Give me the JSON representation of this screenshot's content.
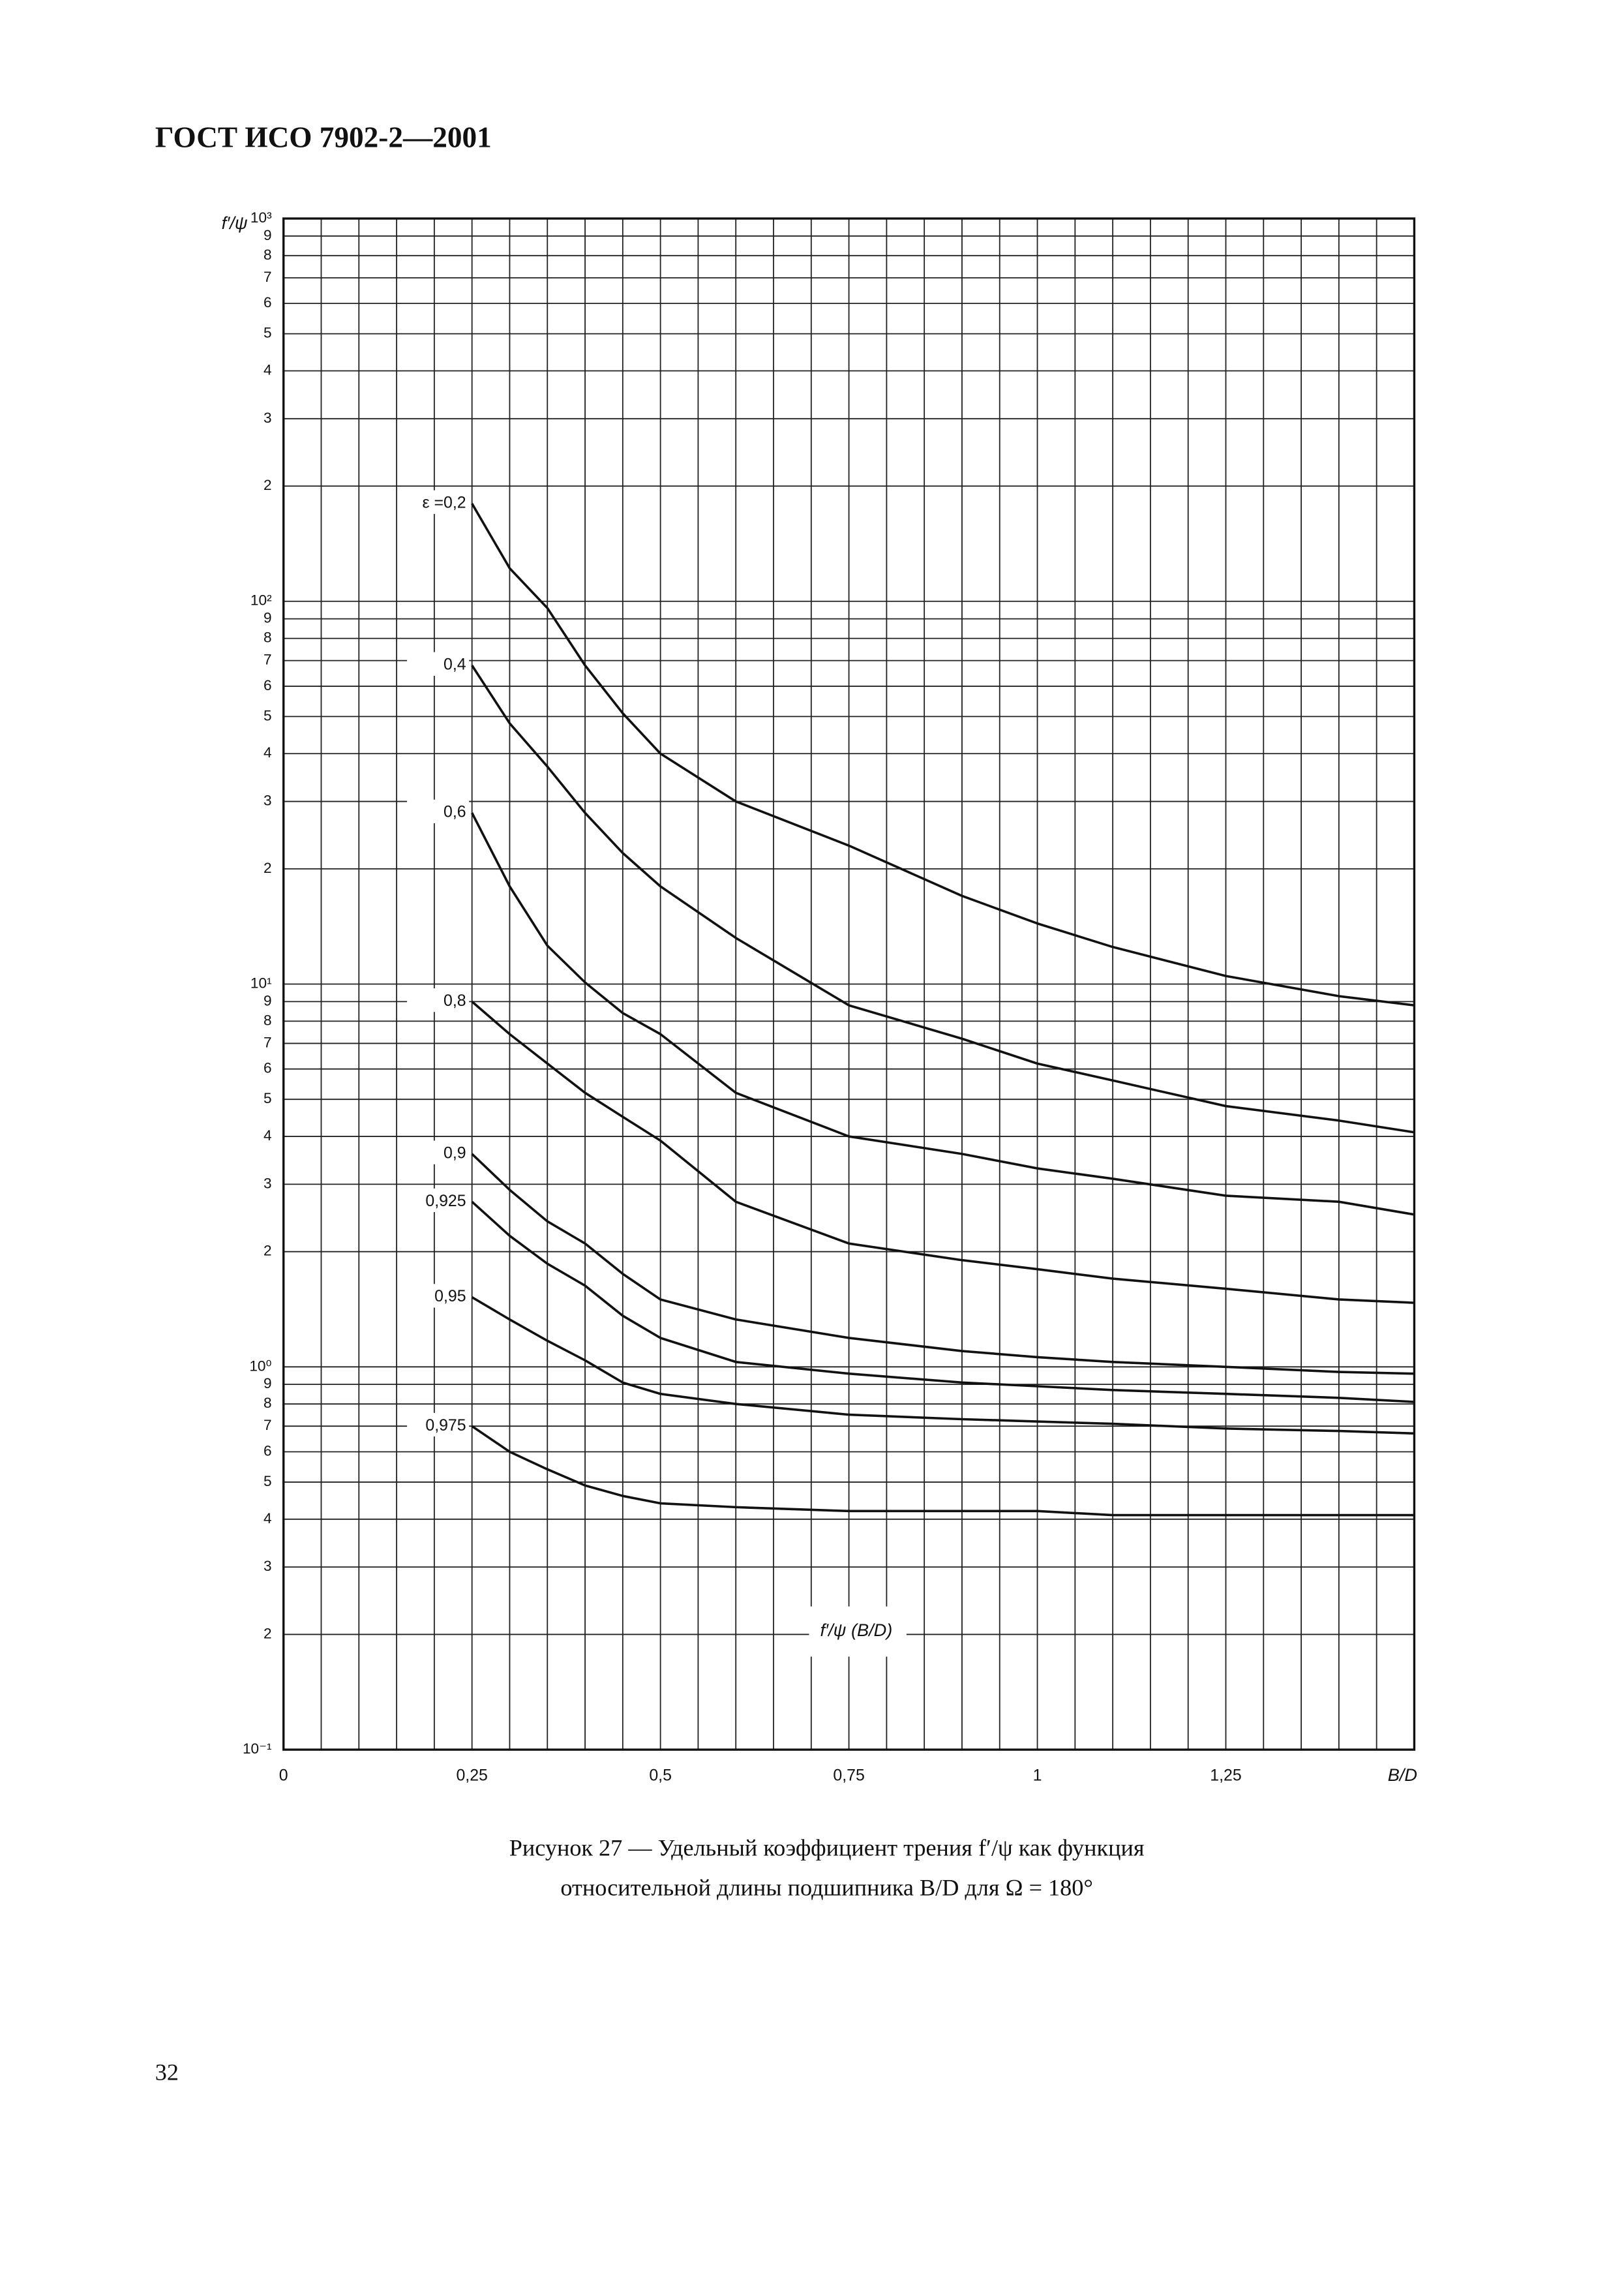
{
  "header": {
    "title": "ГОСТ ИСО 7902-2—2001"
  },
  "caption": {
    "line1": "Рисунок 27 — Удельный коэффициент трения f′/ψ как функция",
    "line2": "относительной длины подшипника B/D для Ω = 180°"
  },
  "page_number": "32",
  "chart_data": {
    "type": "line",
    "y_label": "f′/ψ",
    "x_label": "B/D",
    "annotation": "f′/ψ (B/D)",
    "log_y": true,
    "grid": true,
    "color": "#111111",
    "xlim": [
      0,
      1.5
    ],
    "ylim": [
      0.1,
      1000
    ],
    "xticks": [
      0,
      {
        "value": 0.25,
        "label": "0,25"
      },
      {
        "value": 0.5,
        "label": "0,5"
      },
      {
        "value": 0.75,
        "label": "0,75"
      },
      1,
      {
        "value": 1.25,
        "label": "1,25"
      }
    ],
    "xgrid": [
      0,
      0.05,
      0.1,
      0.15,
      0.2,
      0.25,
      0.3,
      0.35,
      0.4,
      0.45,
      0.5,
      0.55,
      0.6,
      0.65,
      0.7,
      0.75,
      0.8,
      0.85,
      0.9,
      0.95,
      1,
      1.05,
      1.1,
      1.15,
      1.2,
      1.25,
      1.3,
      1.35,
      1.4,
      1.45,
      1.5
    ],
    "yticks": [
      {
        "value": 1000,
        "label": "10³"
      },
      {
        "value": 900,
        "label": "9"
      },
      {
        "value": 800,
        "label": "8"
      },
      {
        "value": 700,
        "label": "7"
      },
      {
        "value": 600,
        "label": "6"
      },
      {
        "value": 500,
        "label": "5"
      },
      {
        "value": 400,
        "label": "4"
      },
      {
        "value": 300,
        "label": "3"
      },
      {
        "value": 200,
        "label": "2"
      },
      {
        "value": 100,
        "label": "10²"
      },
      {
        "value": 90,
        "label": "9"
      },
      {
        "value": 80,
        "label": "8"
      },
      {
        "value": 70,
        "label": "7"
      },
      {
        "value": 60,
        "label": "6"
      },
      {
        "value": 50,
        "label": "5"
      },
      {
        "value": 40,
        "label": "4"
      },
      {
        "value": 30,
        "label": "3"
      },
      {
        "value": 20,
        "label": "2"
      },
      {
        "value": 10,
        "label": "10¹"
      },
      9,
      8,
      7,
      6,
      5,
      4,
      3,
      2,
      {
        "value": 1,
        "label": "10⁰"
      },
      {
        "value": 0.9,
        "label": "9"
      },
      {
        "value": 0.8,
        "label": "8"
      },
      {
        "value": 0.7,
        "label": "7"
      },
      {
        "value": 0.6,
        "label": "6"
      },
      {
        "value": 0.5,
        "label": "5"
      },
      {
        "value": 0.4,
        "label": "4"
      },
      {
        "value": 0.3,
        "label": "3"
      },
      {
        "value": 0.2,
        "label": "2"
      },
      {
        "value": 0.1,
        "label": "10⁻¹"
      }
    ],
    "x": [
      0.25,
      0.3,
      0.35,
      0.4,
      0.45,
      0.5,
      0.6,
      0.75,
      0.9,
      1,
      1.1,
      1.25,
      1.4,
      1.5
    ],
    "series": [
      {
        "name": "ε =0,2",
        "values": [
          180,
          122,
          96,
          68,
          51,
          40,
          30,
          23,
          17,
          14.4,
          12.5,
          10.5,
          9.3,
          8.8
        ]
      },
      {
        "name": "0,4",
        "values": [
          68,
          48,
          37,
          28,
          22,
          18,
          13.2,
          8.8,
          7.2,
          6.2,
          5.6,
          4.8,
          4.4,
          4.1
        ]
      },
      {
        "name": "0,6",
        "values": [
          28,
          18,
          12.6,
          10.1,
          8.4,
          7.4,
          5.2,
          4.0,
          3.6,
          3.3,
          3.1,
          2.8,
          2.7,
          2.5
        ]
      },
      {
        "name": "0,8",
        "values": [
          9.0,
          7.4,
          6.2,
          5.2,
          4.5,
          3.9,
          2.7,
          2.1,
          1.9,
          1.8,
          1.7,
          1.6,
          1.5,
          1.47
        ]
      },
      {
        "name": "0,9",
        "values": [
          3.6,
          2.9,
          2.4,
          2.1,
          1.75,
          1.5,
          1.33,
          1.19,
          1.1,
          1.06,
          1.03,
          1.0,
          0.97,
          0.96
        ]
      },
      {
        "name": "0,925",
        "values": [
          2.7,
          2.2,
          1.86,
          1.63,
          1.36,
          1.19,
          1.03,
          0.96,
          0.91,
          0.89,
          0.87,
          0.85,
          0.83,
          0.81
        ]
      },
      {
        "name": "0,95",
        "values": [
          1.52,
          1.33,
          1.17,
          1.04,
          0.91,
          0.85,
          0.8,
          0.75,
          0.73,
          0.72,
          0.71,
          0.69,
          0.68,
          0.67
        ]
      },
      {
        "name": "0,975",
        "values": [
          0.7,
          0.6,
          0.54,
          0.49,
          0.46,
          0.44,
          0.43,
          0.42,
          0.42,
          0.42,
          0.41,
          0.41,
          0.41,
          0.41
        ]
      }
    ]
  }
}
